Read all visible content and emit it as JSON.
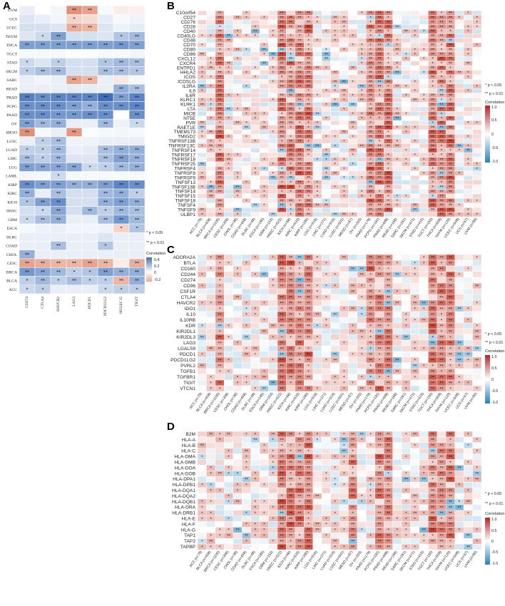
{
  "colors": {
    "neg": "#4a78c0",
    "mid": "#ffffff",
    "pos": "#c0392b",
    "grid": "#ffffff"
  },
  "legend": {
    "sig1": "* p < 0.05",
    "sig2": "** p < 0.01",
    "title": "Correlation",
    "A_ticks": [
      "0.4",
      "0.2",
      "0",
      "-0.2"
    ],
    "B_ticks": [
      "1.0",
      "0.5",
      "0",
      "-0.5",
      "-1.0"
    ]
  },
  "chart_data": [
    {
      "panel": "A",
      "type": "heatmap",
      "title": "",
      "rows": [
        "UVM",
        "UCS",
        "UCEC",
        "THYM",
        "THCA",
        "TGCT",
        "STAD",
        "SKCM",
        "SARC",
        "READ",
        "PRAD",
        "PCPG",
        "PAAD",
        "OV",
        "MESO",
        "LUSC",
        "LUAD",
        "LIHC",
        "LGG",
        "LAML",
        "KIRP",
        "KIRC",
        "KICH",
        "HNSC",
        "GBM",
        "ESCA",
        "DLBC",
        "COAD",
        "CHOL",
        "CESC",
        "BRCA",
        "BLCA",
        "ACC"
      ],
      "cols": [
        "CD274",
        "CTLA4",
        "HAVCR2",
        "LAG3",
        "PDCD1",
        "PDCD1LG2",
        "SIGLEC15",
        "TIGIT"
      ],
      "values": [
        [
          0.05,
          0.0,
          0.03,
          -0.3,
          -0.25,
          0.02,
          -0.05,
          -0.04
        ],
        [
          0.08,
          0.05,
          0.03,
          -0.12,
          -0.1,
          0.06,
          0.02,
          0.04
        ],
        [
          0.1,
          0.1,
          0.08,
          -0.22,
          -0.2,
          0.08,
          0.04,
          0.06
        ],
        [
          0.08,
          0.12,
          0.3,
          0.1,
          0.1,
          0.08,
          0.18,
          0.22
        ],
        [
          0.3,
          0.3,
          0.3,
          0.3,
          0.3,
          0.3,
          0.32,
          0.3
        ],
        [
          0.02,
          0.02,
          0.02,
          0.01,
          0.01,
          0.02,
          0.02,
          0.03
        ],
        [
          0.12,
          0.08,
          0.15,
          0.1,
          0.1,
          0.18,
          0.22,
          0.2
        ],
        [
          0.15,
          0.2,
          0.22,
          0.1,
          0.1,
          0.2,
          0.2,
          0.18
        ],
        [
          0.05,
          0.03,
          0.05,
          -0.25,
          -0.2,
          0.05,
          -0.06,
          0.02
        ],
        [
          0.05,
          0.05,
          0.05,
          0.06,
          0.06,
          0.05,
          0.25,
          0.2
        ],
        [
          0.4,
          0.35,
          0.38,
          0.38,
          0.38,
          0.45,
          0.3,
          0.38
        ],
        [
          0.35,
          0.35,
          0.35,
          0.3,
          0.25,
          0.35,
          0.35,
          0.38
        ],
        [
          0.35,
          0.35,
          0.32,
          0.32,
          0.35,
          0.35,
          0.0,
          0.35
        ],
        [
          0.3,
          0.22,
          0.25,
          0.05,
          0.05,
          0.22,
          0.04,
          0.12
        ],
        [
          -0.3,
          0.02,
          0.05,
          -0.28,
          0.01,
          0.02,
          0.03,
          0.02
        ],
        [
          0.05,
          0.15,
          0.2,
          0.04,
          0.04,
          0.05,
          0.05,
          0.05
        ],
        [
          0.15,
          0.15,
          0.22,
          0.05,
          0.06,
          0.2,
          0.25,
          0.25
        ],
        [
          0.2,
          0.15,
          0.22,
          0.08,
          0.08,
          0.2,
          0.3,
          0.25
        ],
        [
          0.3,
          0.28,
          0.28,
          0.28,
          0.12,
          0.15,
          0.22,
          0.25
        ],
        [
          0.03,
          0.02,
          0.12,
          0.02,
          0.02,
          0.02,
          0.02,
          0.02
        ],
        [
          0.35,
          0.3,
          0.3,
          0.25,
          0.25,
          0.3,
          0.38,
          0.35
        ],
        [
          0.25,
          0.05,
          0.2,
          0.1,
          0.1,
          0.22,
          0.25,
          0.15
        ],
        [
          0.18,
          0.3,
          0.35,
          0.1,
          0.1,
          0.25,
          0.3,
          0.25
        ],
        [
          0.1,
          0.12,
          0.28,
          0.1,
          0.22,
          0.15,
          0.22,
          0.2
        ],
        [
          0.12,
          0.2,
          0.25,
          0.05,
          0.05,
          0.2,
          0.32,
          0.22
        ],
        [
          0.02,
          0.04,
          0.05,
          0.03,
          0.03,
          0.04,
          -0.12,
          0.18
        ],
        [
          0.05,
          0.05,
          0.05,
          0.05,
          0.05,
          0.08,
          0.05,
          0.05
        ],
        [
          0.05,
          0.05,
          0.2,
          0.05,
          0.05,
          0.18,
          0.05,
          0.05
        ],
        [
          0.25,
          0.05,
          0.05,
          0.05,
          0.05,
          0.05,
          0.05,
          0.05
        ],
        [
          -0.25,
          -0.22,
          -0.2,
          -0.2,
          -0.25,
          -0.2,
          -0.05,
          -0.22
        ],
        [
          0.32,
          0.28,
          0.22,
          0.15,
          0.18,
          0.3,
          0.25,
          0.25
        ],
        [
          0.15,
          0.22,
          0.15,
          0.2,
          0.15,
          0.15,
          -0.2,
          0.25
        ],
        [
          0.12,
          0.15,
          0.05,
          0.05,
          0.05,
          0.12,
          0.15,
          0.15
        ]
      ]
    },
    {
      "panel": "B",
      "type": "heatmap",
      "rows": [
        "C10orf54",
        "CD27",
        "CD276",
        "CD28",
        "CD40",
        "CD40LG",
        "CD48",
        "CD70",
        "CD80",
        "CD86",
        "CXCL12",
        "CXCR4",
        "ENTPD1",
        "HHLA2",
        "ICOS",
        "ICOSLG",
        "IL2RA",
        "IL6",
        "IL6R",
        "KLRC1",
        "KLRK1",
        "LTA",
        "MICB",
        "NT5E",
        "PVR",
        "RAET1E",
        "TMEM173",
        "TMIGD2",
        "TNFRSF13B",
        "TNFRSF13C",
        "TNFRSF14",
        "TNFRSF17",
        "TNFRSF18",
        "TNFRSF25",
        "TNFRSF4",
        "TNFRSF8",
        "TNFRSF9",
        "TNFSF13",
        "TNFSF13B",
        "TNFSF14",
        "TNFSF15",
        "TNFSF18",
        "TNFSF4",
        "TNFSF9",
        "ULBP1"
      ],
      "cols": [
        "ACC (n=79)",
        "BLCA (n=408)",
        "BRCA (n=1100)",
        "CESC (n=306)",
        "CHOL (n=36)",
        "COAD (n=458)",
        "DLBC (n=48)",
        "ESCA (n=185)",
        "GBM (n=153)",
        "HNSC (n=522)",
        "KICH (n=66)",
        "KIRC (n=533)",
        "KIRP (n=290)",
        "LGG (n=516)",
        "LIHC (n=371)",
        "LUAD (n=515)",
        "LUSC (n=501)",
        "MESO (n=87)",
        "OV (n=303)",
        "PAAD (n=179)",
        "PCPG (n=181)",
        "PRAD (n=498)",
        "READ (n=166)",
        "SARC (n=261)",
        "SKCM (n=471)",
        "STAD (n=415)",
        "TGCT (n=150)",
        "THCA (n=509)",
        "THYM (n=120)",
        "UCEC (n=548)",
        "UCS (n=57)",
        "UVM (n=80)"
      ]
    },
    {
      "panel": "C",
      "type": "heatmap",
      "rows": [
        "ADORA2A",
        "BTLA",
        "CD160",
        "CD244",
        "CD274",
        "CD96",
        "CSF1R",
        "CTLA4",
        "HAVCR2",
        "IDO1",
        "IL10",
        "IL10RB",
        "KDR",
        "KIR2DL1",
        "KIR2DL3",
        "LAG3",
        "LGALS9",
        "PDCD1",
        "PDCD1LG2",
        "PVRL2",
        "TGFB1",
        "TGFBR1",
        "TIGIT",
        "VTCN1"
      ],
      "cols": [
        "ACC (n=79)",
        "BLCA (n=408)",
        "BRCA (n=1100)",
        "CESC (n=306)",
        "CHOL (n=36)",
        "COAD (n=458)",
        "DLBC (n=48)",
        "ESCA (n=185)",
        "GBM (n=153)",
        "HNSC (n=522)",
        "KICH (n=66)",
        "KIRC (n=533)",
        "KIRP (n=290)",
        "LGG (n=516)",
        "LIHC (n=371)",
        "LUAD (n=515)",
        "LUSC (n=501)",
        "MESO (n=87)",
        "OV (n=303)",
        "PAAD (n=179)",
        "PCPG (n=181)",
        "PRAD (n=498)",
        "READ (n=166)",
        "SARC (n=261)",
        "SKCM (n=471)",
        "STAD (n=415)",
        "TGCT (n=150)",
        "THCA (n=509)",
        "THYM (n=120)",
        "UCEC (n=548)",
        "UCS (n=57)",
        "UVM (n=80)"
      ]
    },
    {
      "panel": "D",
      "type": "heatmap",
      "rows": [
        "B2M",
        "HLA-A",
        "HLA-B",
        "HLA-C",
        "HLA-DMA",
        "HLA-DMB",
        "HLA-DOA",
        "HLA-DOB",
        "HLA-DPA1",
        "HLA-DPB1",
        "HLA-DQA1",
        "HLA-DQA2",
        "HLA-DQB1",
        "HLA-DRA",
        "HLA-DRB1",
        "HLA-E",
        "HLA-F",
        "HLA-G",
        "TAP1",
        "TAP2",
        "TAPBP"
      ],
      "cols": [
        "ACC (n=79)",
        "BLCA (n=408)",
        "BRCA (n=1100)",
        "CESC (n=306)",
        "CHOL (n=36)",
        "COAD (n=458)",
        "DLBC (n=48)",
        "ESCA (n=185)",
        "GBM (n=153)",
        "HNSC (n=522)",
        "KICH (n=66)",
        "KIRC (n=533)",
        "KIRP (n=290)",
        "LGG (n=516)",
        "LIHC (n=371)",
        "LUAD (n=515)",
        "LUSC (n=501)",
        "MESO (n=87)",
        "OV (n=303)",
        "PAAD (n=179)",
        "PCPG (n=181)",
        "PRAD (n=498)",
        "READ (n=166)",
        "SARC (n=261)",
        "SKCM (n=471)",
        "STAD (n=415)",
        "TGCT (n=150)",
        "THCA (n=509)",
        "THYM (n=120)",
        "UCEC (n=548)",
        "UCS (n=57)",
        "UVM (n=80)"
      ]
    }
  ]
}
